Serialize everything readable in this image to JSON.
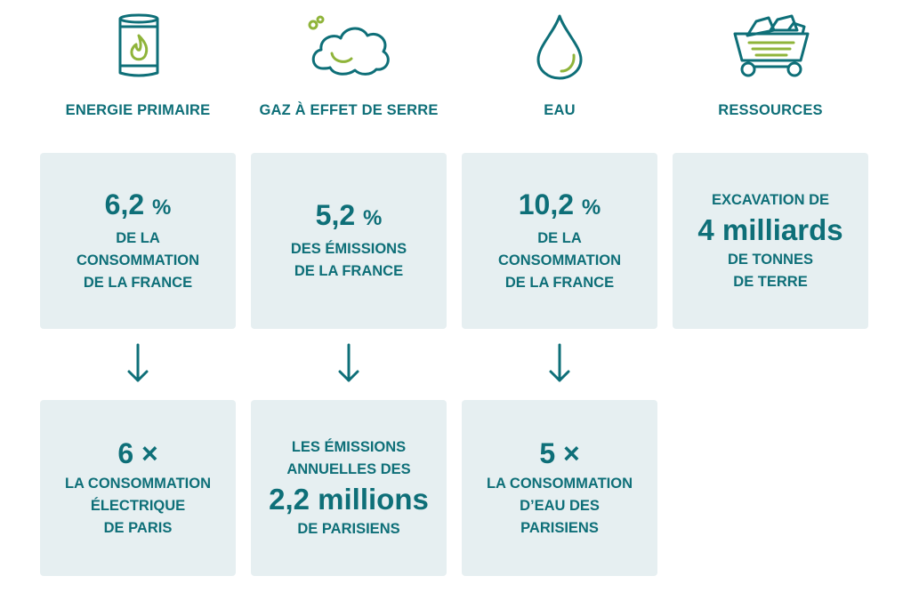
{
  "colors": {
    "primary": "#0e6f78",
    "accent": "#8fb43a",
    "card_bg": "#e6eff1"
  },
  "columns": [
    {
      "category": "ENERGIE PRIMAIRE",
      "icon": "fuel-barrel-flame-icon",
      "top_value": "6,2",
      "top_unit": "%",
      "top_text": "DE LA\nCONSOMMATION\nDE LA FRANCE",
      "bottom_value": "6 ×",
      "bottom_text": "LA CONSOMMATION\nÉLECTRIQUE\nDE PARIS"
    },
    {
      "category": "GAZ À EFFET DE SERRE",
      "icon": "gas-cloud-icon",
      "top_value": "5,2",
      "top_unit": "%",
      "top_text": "DES ÉMISSIONS\nDE LA FRANCE",
      "bottom_pre": "LES ÉMISSIONS\nANNUELLES DES",
      "bottom_value": "2,2 millions",
      "bottom_text": "DE PARISIENS"
    },
    {
      "category": "EAU",
      "icon": "water-drop-icon",
      "top_value": "10,2",
      "top_unit": "%",
      "top_text": "DE LA\nCONSOMMATION\nDE LA FRANCE",
      "bottom_value": "5 ×",
      "bottom_text": "LA CONSOMMATION\nD’EAU DES\nPARISIENS"
    },
    {
      "category": "RESSOURCES",
      "icon": "mine-cart-icon",
      "top_pre": "EXCAVATION DE",
      "top_value": "4 milliards",
      "top_text": "DE TONNES\nDE TERRE"
    }
  ]
}
